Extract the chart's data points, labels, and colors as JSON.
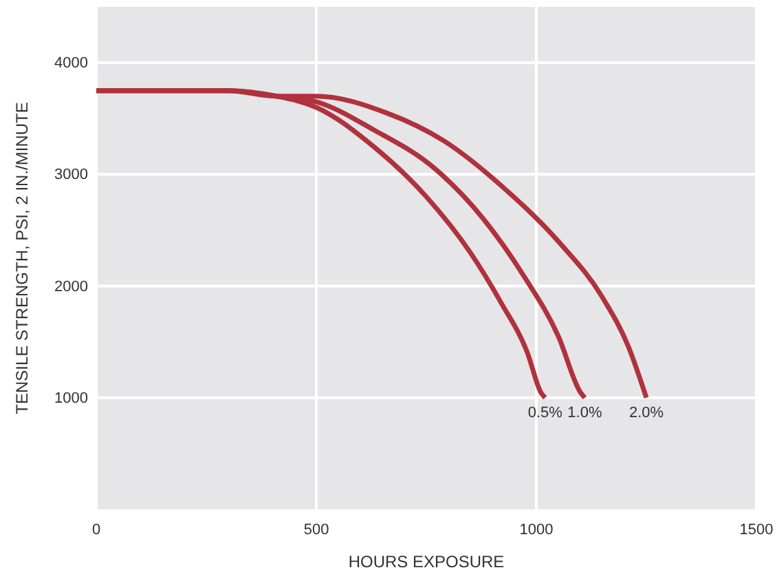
{
  "chart_data": {
    "type": "line",
    "xlabel": "HOURS EXPOSURE",
    "ylabel": "TENSILE STRENGTH, PSI, 2 IN./MINUTE",
    "xlim": [
      0,
      1500
    ],
    "ylim": [
      0,
      4500
    ],
    "xticks": [
      0,
      500,
      1000,
      1500
    ],
    "yticks": [
      1000,
      2000,
      3000,
      4000
    ],
    "grid": true,
    "line_style": "solid",
    "series": [
      {
        "name": "0.5%",
        "color": "#b0323c",
        "x": [
          0,
          150,
          300,
          410,
          500,
          630,
          750,
          850,
          920,
          980,
          1010,
          1020
        ],
        "values": [
          3750,
          3750,
          3750,
          3700,
          3600,
          3250,
          2800,
          2300,
          1850,
          1400,
          1050,
          1000
        ]
      },
      {
        "name": "1.0%",
        "color": "#b0323c",
        "x": [
          0,
          150,
          300,
          410,
          500,
          630,
          770,
          880,
          970,
          1050,
          1100,
          1110
        ],
        "values": [
          3750,
          3750,
          3750,
          3700,
          3650,
          3400,
          3050,
          2600,
          2100,
          1550,
          1050,
          1000
        ]
      },
      {
        "name": "2.0%",
        "color": "#b0323c",
        "x": [
          0,
          150,
          300,
          410,
          500,
          660,
          790,
          920,
          1050,
          1150,
          1210,
          1250
        ],
        "values": [
          3750,
          3750,
          3750,
          3700,
          3700,
          3550,
          3300,
          2900,
          2400,
          1900,
          1450,
          1000
        ]
      }
    ]
  }
}
